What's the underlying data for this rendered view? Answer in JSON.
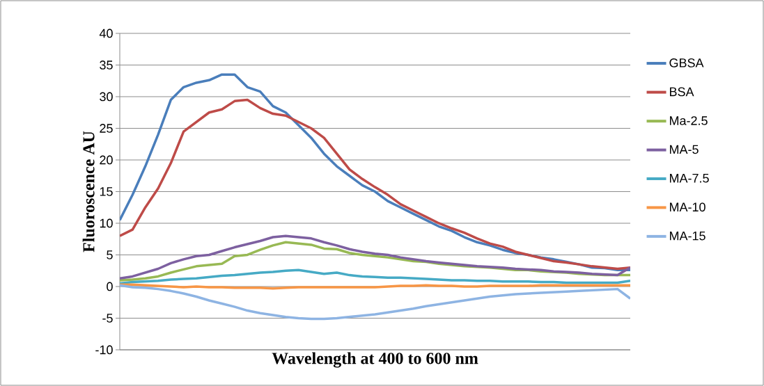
{
  "chart_data": {
    "type": "line",
    "xlabel": "Wavelength at 400 to 600 nm",
    "ylabel": "Fluoroscence AU",
    "categories": [
      null,
      null,
      null,
      null,
      null,
      null,
      null,
      null,
      null,
      null,
      null,
      null,
      null,
      null,
      null,
      null,
      null,
      null,
      null,
      null,
      null,
      null,
      null,
      null,
      null,
      null,
      null,
      null,
      null,
      null,
      null,
      null,
      null,
      null,
      null,
      null,
      null,
      null,
      null,
      null,
      null
    ],
    "series": [
      {
        "name": "GBSA",
        "color": "#4a7ebb",
        "values": [
          10.5,
          14.5,
          19,
          24,
          29.5,
          31.5,
          32.2,
          32.6,
          33.5,
          33.5,
          31.5,
          30.8,
          28.5,
          27.5,
          25.5,
          23.5,
          21,
          19,
          17.5,
          16,
          15,
          13.5,
          12.5,
          11.5,
          10.5,
          9.5,
          8.8,
          7.8,
          7.0,
          6.5,
          5.8,
          5.3,
          5.0,
          4.6,
          4.3,
          3.9,
          3.5,
          3.0,
          2.9,
          2.6,
          2.6
        ]
      },
      {
        "name": "BSA",
        "color": "#be4b48",
        "values": [
          8.0,
          9.0,
          12.5,
          15.5,
          19.5,
          24.5,
          26,
          27.5,
          28,
          29.3,
          29.5,
          28.2,
          27.3,
          27,
          26,
          25,
          23.5,
          21,
          18.5,
          17,
          15.7,
          14.5,
          13.0,
          12,
          11,
          10,
          9.2,
          8.5,
          7.6,
          6.8,
          6.3,
          5.5,
          5.0,
          4.5,
          4.0,
          3.8,
          3.5,
          3.2,
          3.0,
          2.8,
          3.0
        ]
      },
      {
        "name": "Ma-2.5",
        "color": "#98b954",
        "values": [
          1.0,
          1.1,
          1.3,
          1.6,
          2.2,
          2.7,
          3.2,
          3.4,
          3.6,
          4.8,
          5.0,
          5.8,
          6.5,
          7.0,
          6.8,
          6.6,
          6.0,
          5.9,
          5.3,
          5.0,
          4.8,
          4.6,
          4.3,
          4.0,
          3.9,
          3.6,
          3.4,
          3.2,
          3.1,
          3.0,
          2.8,
          2.6,
          2.6,
          2.4,
          2.3,
          2.2,
          2.0,
          1.9,
          1.8,
          1.8,
          1.8
        ]
      },
      {
        "name": "MA-5",
        "color": "#7d60a0",
        "values": [
          1.3,
          1.6,
          2.2,
          2.8,
          3.7,
          4.3,
          4.8,
          5.0,
          5.6,
          6.2,
          6.7,
          7.2,
          7.8,
          8.0,
          7.8,
          7.6,
          7.0,
          6.5,
          5.9,
          5.5,
          5.2,
          5.0,
          4.6,
          4.3,
          4.0,
          3.8,
          3.6,
          3.4,
          3.2,
          3.1,
          3.0,
          2.8,
          2.7,
          2.6,
          2.4,
          2.3,
          2.2,
          2.0,
          1.9,
          1.8,
          3.0
        ]
      },
      {
        "name": "MA-7.5",
        "color": "#46aac5",
        "values": [
          0.5,
          0.7,
          0.8,
          0.9,
          1.1,
          1.2,
          1.3,
          1.5,
          1.7,
          1.8,
          2.0,
          2.2,
          2.3,
          2.5,
          2.6,
          2.3,
          2.0,
          2.2,
          1.8,
          1.6,
          1.5,
          1.4,
          1.4,
          1.3,
          1.2,
          1.1,
          1.0,
          1.0,
          0.9,
          0.9,
          0.8,
          0.8,
          0.8,
          0.7,
          0.7,
          0.6,
          0.6,
          0.6,
          0.6,
          0.6,
          0.9
        ]
      },
      {
        "name": "MA-10",
        "color": "#f79646",
        "values": [
          0.3,
          0.3,
          0.2,
          0.1,
          0.0,
          -0.1,
          0.0,
          -0.1,
          -0.1,
          -0.2,
          -0.2,
          -0.2,
          -0.3,
          -0.2,
          -0.1,
          -0.1,
          -0.1,
          -0.1,
          -0.1,
          -0.1,
          -0.1,
          0.0,
          0.1,
          0.1,
          0.2,
          0.1,
          0.1,
          0.0,
          0.0,
          0.1,
          0.1,
          0.1,
          0.1,
          0.2,
          0.2,
          0.2,
          0.2,
          0.2,
          0.2,
          0.2,
          0.2
        ]
      },
      {
        "name": "MA-15",
        "color": "#8eb4e3",
        "values": [
          0.2,
          -0.1,
          -0.2,
          -0.4,
          -0.7,
          -1.1,
          -1.6,
          -2.2,
          -2.7,
          -3.2,
          -3.8,
          -4.2,
          -4.5,
          -4.8,
          -5.0,
          -5.1,
          -5.1,
          -5.0,
          -4.8,
          -4.6,
          -4.4,
          -4.1,
          -3.8,
          -3.5,
          -3.1,
          -2.8,
          -2.5,
          -2.2,
          -1.9,
          -1.6,
          -1.4,
          -1.2,
          -1.1,
          -1.0,
          -0.9,
          -0.8,
          -0.7,
          -0.6,
          -0.5,
          -0.4,
          -1.9
        ]
      }
    ],
    "ylim": [
      -10,
      40
    ],
    "yticks": [
      -10,
      -5,
      0,
      5,
      10,
      15,
      20,
      25,
      30,
      35,
      40
    ],
    "grid": "y",
    "legend": "right",
    "tick_labels": "y"
  }
}
